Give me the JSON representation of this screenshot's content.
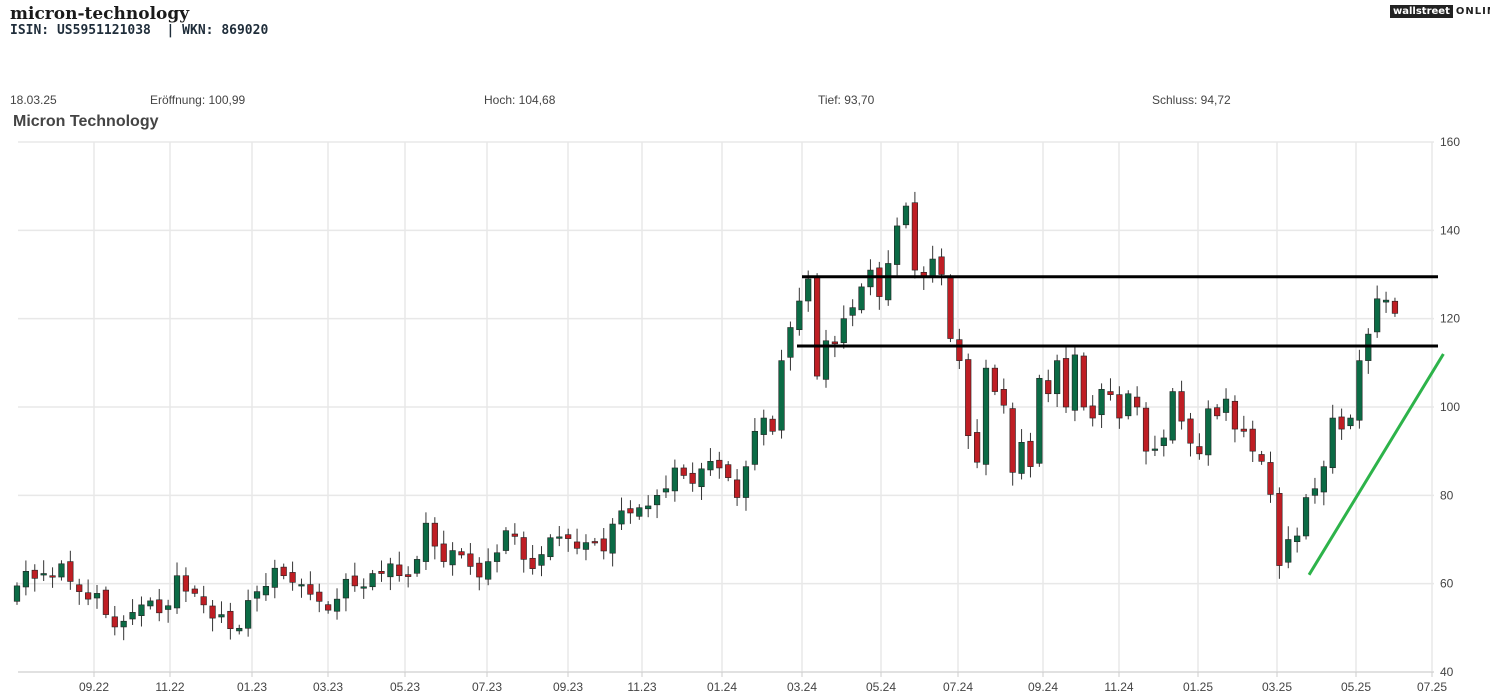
{
  "header": {
    "title": "micron-technology",
    "ids": "ISIN: US5951121038  | WKN: 869020",
    "logo_left": "wallstreet",
    "logo_right": "ONLINE"
  },
  "ohlc": {
    "date": "18.03.25",
    "open": "Eröffnung: 100,99",
    "high": "Hoch: 104,68",
    "low": "Tief: 93,70",
    "close": "Schluss: 94,72"
  },
  "chart_data": {
    "type": "candlestick",
    "title": "Micron Technology",
    "y_ticks": [
      40,
      60,
      80,
      100,
      120,
      140,
      160
    ],
    "ylim": [
      40,
      160
    ],
    "x_ticks": [
      "09.22",
      "11.22",
      "01.23",
      "03.23",
      "05.23",
      "07.23",
      "09.23",
      "11.23",
      "01.24",
      "03.24",
      "05.24",
      "07.24",
      "09.24",
      "11.24",
      "01.25",
      "03.25",
      "05.25",
      "07.25"
    ],
    "grid": true,
    "colors": {
      "up": "#0b6b45",
      "down": "#bf1e24",
      "grid": "#e8e8e8",
      "support_line": "#000000",
      "trend_line": "#2db34a"
    },
    "closes": [
      59.5,
      62.8,
      61.2,
      62.3,
      61.5,
      64.5,
      60.5,
      58.2,
      56.5,
      57.8,
      53.0,
      50.2,
      51.5,
      53.5,
      55.2,
      56.1,
      53.4,
      55.0,
      61.8,
      58.3,
      57.8,
      55.2,
      52.2,
      53.0,
      49.8,
      49.9,
      56.2,
      58.2,
      59.4,
      63.5,
      61.8,
      60.3,
      59.8,
      57.6,
      56.0,
      54.0,
      56.5,
      61.0,
      59.5,
      59.3,
      62.3,
      62.3,
      64.5,
      61.8,
      61.6,
      65.5,
      73.7,
      68.5,
      65.0,
      67.5,
      66.5,
      63.9,
      61.5,
      65.0,
      67.0,
      72.0,
      70.7,
      65.5,
      63.4,
      66.6,
      70.4,
      70.6,
      70.2,
      68.0,
      69.3,
      69.4,
      67.4,
      73.5,
      76.5,
      76.0,
      77.2,
      77.6,
      80.0,
      81.5,
      86.2,
      84.5,
      82.7,
      86.0,
      87.7,
      86.2,
      84.0,
      79.5,
      86.5,
      94.5,
      97.5,
      94.5,
      110.5,
      118.0,
      124.0,
      129.0,
      107.0,
      115.0,
      114.3,
      120.0,
      122.5,
      127.2,
      131.0,
      125.0,
      132.5,
      141.0,
      145.5,
      131.0,
      129.5,
      133.5,
      130.0,
      115.5,
      110.5,
      93.5,
      87.5,
      108.8,
      103.5,
      100.4,
      85.2,
      92.0,
      86.5,
      106.5,
      103.0,
      110.5,
      100.0,
      111.8,
      100.0,
      97.5,
      104.0,
      102.8,
      97.5,
      103.0,
      100.0,
      90.0,
      90.5,
      93.0,
      103.5,
      96.8,
      91.8,
      89.4,
      99.6,
      98.0,
      101.8,
      95.0,
      94.5,
      90.0,
      87.7,
      80.2,
      64.1,
      70.0,
      70.8,
      79.5,
      81.5,
      86.5,
      97.5,
      95.0,
      97.5,
      110.5,
      116.5,
      124.5,
      124.2,
      121.2
    ],
    "support_lines": [
      129.5,
      113.8
    ],
    "trend_line": {
      "from": {
        "index": 145,
        "price": 62
      },
      "to": {
        "index": 160,
        "price": 112
      }
    }
  }
}
